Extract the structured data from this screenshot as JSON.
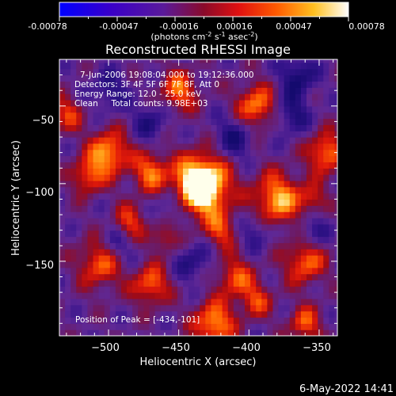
{
  "colorbar": {
    "ticks": [
      "-0.00078",
      "-0.00047",
      "-0.00016",
      "0.00016",
      "0.00047",
      "0.00078"
    ],
    "unit_prefix": "(photons cm",
    "unit_exp1": "-2",
    "unit_mid": " s",
    "unit_exp2": "-1",
    "unit_mid2": " asec",
    "unit_exp3": "-2",
    "unit_suffix": ")",
    "min": -0.00078,
    "max": 0.00078
  },
  "chart_data": {
    "type": "heatmap",
    "title": "Reconstructed RHESSI Image",
    "xlabel": "Heliocentric X (arcsec)",
    "ylabel": "Heliocentric Y (arcsec)",
    "xlim": [
      -535,
      -337
    ],
    "ylim": [
      -198,
      -20
    ],
    "xticks": [
      -500,
      -450,
      -400,
      -350
    ],
    "xtick_labels": [
      "−500",
      "−450",
      "−400",
      "−350"
    ],
    "yticks": [
      -50,
      -100,
      -150
    ],
    "ytick_labels": [
      "−50",
      "−100",
      "−150"
    ],
    "info_lines": [
      "7-Jun-2006 19:08:04.000 to 19:12:36.000",
      "Detectors: 3F 4F 5F 6F 7F 8F, Att 0",
      "Energy Range: 12.0 - 25.0 keV",
      "Clean     Total counts: 9.98E+03"
    ],
    "peak_label": "Position of Peak = [-434,-101]",
    "peak": [
      -434,
      -101
    ],
    "colormap": "blue-purple-red-orange-yellow-white",
    "grid": false
  },
  "footer": {
    "timestamp": "6-May-2022 14:41"
  }
}
